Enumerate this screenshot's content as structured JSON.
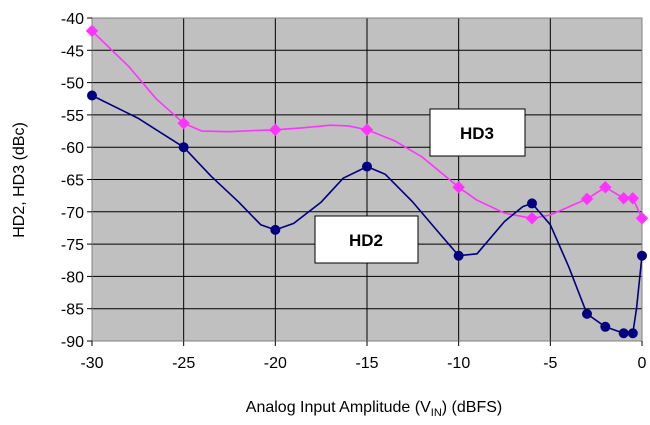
{
  "chart_data": {
    "type": "line",
    "xlabel_main": "Analog Input Amplitude (V",
    "xlabel_sub": "IN",
    "xlabel_tail": ") (dBFS)",
    "ylabel": "HD2, HD3 (dBc)",
    "xlim": [
      -30,
      0
    ],
    "ylim": [
      -90,
      -40
    ],
    "x_ticks": [
      "-30",
      "-25",
      "-20",
      "-15",
      "-10",
      "-5",
      "0"
    ],
    "y_ticks": [
      "-40",
      "-45",
      "-50",
      "-55",
      "-60",
      "-65",
      "-70",
      "-75",
      "-80",
      "-85",
      "-90"
    ],
    "grid": true,
    "series": [
      {
        "name": "HD3",
        "color": "#ff33ff",
        "marker": "diamond",
        "points": [
          [
            -30,
            -42
          ],
          [
            -25,
            -56.3
          ],
          [
            -20,
            -57.3
          ],
          [
            -15,
            -57.3
          ],
          [
            -10,
            -66.2
          ],
          [
            -6,
            -71
          ],
          [
            -3,
            -68
          ],
          [
            -2,
            -66.2
          ],
          [
            -1,
            -67.9
          ],
          [
            -0.5,
            -67.9
          ],
          [
            0,
            -71
          ]
        ],
        "curve": [
          [
            -30,
            -42
          ],
          [
            -28,
            -47.5
          ],
          [
            -26.5,
            -52.5
          ],
          [
            -25,
            -56.3
          ],
          [
            -24,
            -57.5
          ],
          [
            -22.5,
            -57.6
          ],
          [
            -21,
            -57.4
          ],
          [
            -20,
            -57.3
          ],
          [
            -18.5,
            -57
          ],
          [
            -17,
            -56.6
          ],
          [
            -16,
            -56.7
          ],
          [
            -15,
            -57.3
          ],
          [
            -13.5,
            -59
          ],
          [
            -12,
            -61.5
          ],
          [
            -10,
            -66.2
          ],
          [
            -9,
            -68.2
          ],
          [
            -7.5,
            -70.2
          ],
          [
            -6,
            -71
          ],
          [
            -5,
            -70.5
          ],
          [
            -3,
            -68
          ],
          [
            -2,
            -66.2
          ],
          [
            -1,
            -67.9
          ],
          [
            -0.5,
            -67.9
          ],
          [
            0,
            -71
          ]
        ]
      },
      {
        "name": "HD2",
        "color": "#000080",
        "marker": "circle",
        "points": [
          [
            -30,
            -52
          ],
          [
            -25,
            -60
          ],
          [
            -20,
            -72.8
          ],
          [
            -15,
            -63
          ],
          [
            -10,
            -76.8
          ],
          [
            -6,
            -68.7
          ],
          [
            -3,
            -85.8
          ],
          [
            -2,
            -87.8
          ],
          [
            -1,
            -88.8
          ],
          [
            -0.5,
            -88.8
          ],
          [
            0,
            -76.8
          ]
        ],
        "curve": [
          [
            -30,
            -52
          ],
          [
            -27.5,
            -55.5
          ],
          [
            -25,
            -60
          ],
          [
            -23.5,
            -64.5
          ],
          [
            -22,
            -68.5
          ],
          [
            -20.8,
            -72
          ],
          [
            -20,
            -72.8
          ],
          [
            -19,
            -71.8
          ],
          [
            -17.5,
            -68.5
          ],
          [
            -16.3,
            -64.8
          ],
          [
            -15,
            -63
          ],
          [
            -14,
            -64.2
          ],
          [
            -12.5,
            -68.5
          ],
          [
            -11,
            -73.5
          ],
          [
            -10,
            -76.8
          ],
          [
            -9,
            -76.5
          ],
          [
            -7.5,
            -71.5
          ],
          [
            -6.5,
            -69.2
          ],
          [
            -6,
            -68.7
          ],
          [
            -5,
            -72
          ],
          [
            -4,
            -78.5
          ],
          [
            -3,
            -85.8
          ],
          [
            -2,
            -87.8
          ],
          [
            -1,
            -88.8
          ],
          [
            -0.5,
            -88.8
          ],
          [
            -0.3,
            -85
          ],
          [
            0,
            -76.8
          ]
        ]
      }
    ],
    "annotations": [
      {
        "text": "HD3",
        "series": "HD3"
      },
      {
        "text": "HD2",
        "series": "HD2"
      }
    ]
  }
}
